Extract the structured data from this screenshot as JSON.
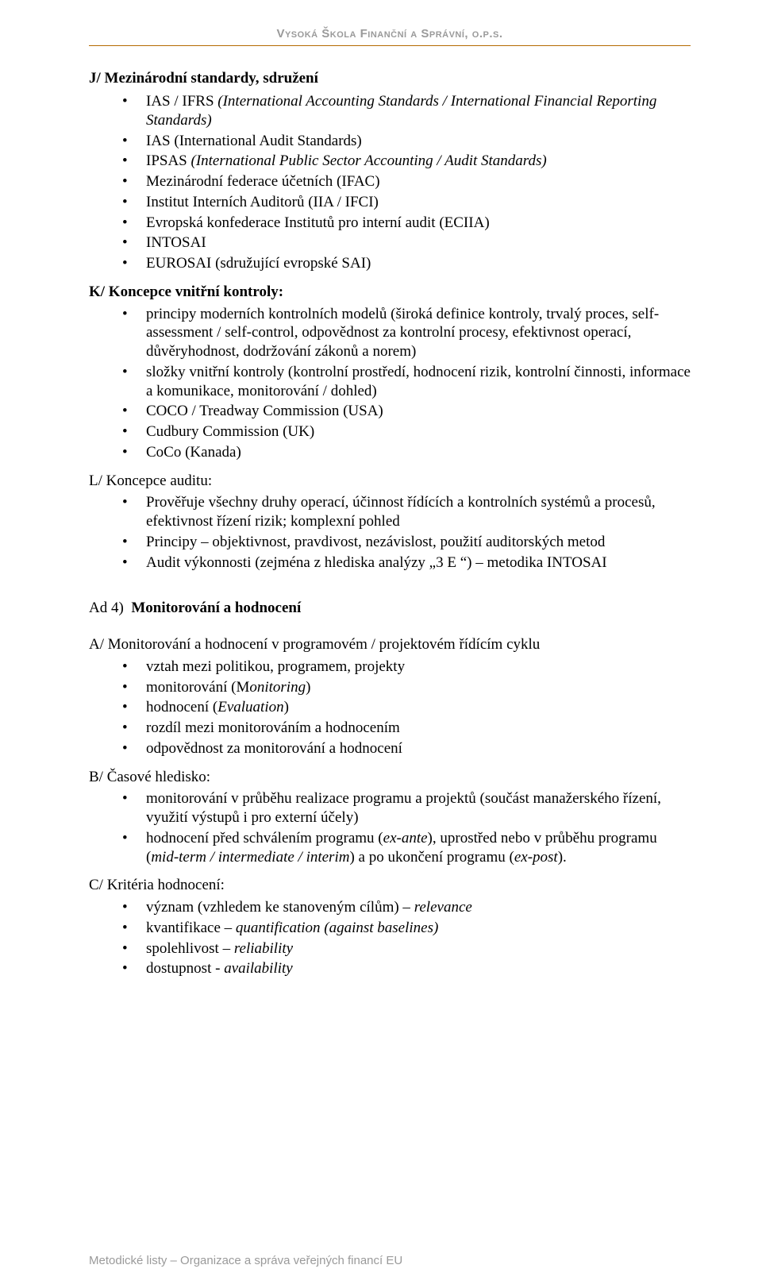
{
  "header": "Vysoká Škola Finanční a Správní, o.p.s.",
  "secJ": {
    "label": "J/  Mezinárodní standardy, sdružení",
    "items": [
      "IAS / IFRS (International Accounting Standards / International Financial Reporting Standards)",
      "IAS (International Audit Standards)",
      "IPSAS (International Public Sector Accounting / Audit Standards)",
      "Mezinárodní federace účetních (IFAC)",
      "Institut Interních Auditorů (IIA / IFCI)",
      "Evropská konfederace Institutů pro interní audit (ECIIA)",
      "INTOSAI",
      "EUROSAI (sdružující evropské SAI)"
    ]
  },
  "secK": {
    "label": "K/ Koncepce vnitřní kontroly:",
    "items": [
      "principy moderních kontrolních modelů (široká definice kontroly, trvalý proces, self-assessment / self-control, odpovědnost za kontrolní procesy, efektivnost operací, důvěryhodnost, dodržování zákonů a norem)",
      "složky vnitřní kontroly (kontrolní prostředí, hodnocení rizik, kontrolní činnosti, informace a komunikace, monitorování / dohled)",
      "COCO / Treadway Commission (USA)",
      "Cudbury Commission (UK)",
      "CoCo (Kanada)"
    ]
  },
  "secL": {
    "label": "L/ Koncepce auditu:",
    "items": [
      "Prověřuje všechny druhy operací, účinnost řídících a kontrolních systémů a procesů, efektivnost řízení rizik; komplexní pohled",
      "Principy – objektivnost, pravdivost, nezávislost, použití auditorských metod",
      "Audit výkonnosti (zejména z hlediska analýzy „3 E “) – metodika INTOSAI"
    ]
  },
  "ad4": {
    "label": "Ad 4)  Monitorování a hodnocení"
  },
  "secA": {
    "label": "A/  Monitorování a hodnocení v programovém / projektovém řídícím cyklu",
    "items": [
      {
        "text": "vztah mezi politikou, programem, projekty"
      },
      {
        "text_pre": "monitorování (M",
        "italic": "onitoring",
        "text_post": ")"
      },
      {
        "text_pre": "hodnocení (",
        "italic": "Evaluation",
        "text_post": ")"
      },
      {
        "text": "rozdíl mezi monitorováním a hodnocením"
      },
      {
        "text": "odpovědnost za monitorování a hodnocení"
      }
    ]
  },
  "secB": {
    "label": "B/  Časové hledisko:",
    "items": [
      {
        "text": "monitorování v průběhu realizace programu a projektů (součást manažerského řízení, využití výstupů i pro externí účely)"
      },
      {
        "html_parts": [
          {
            "t": "hodnocení před schválením programu ("
          },
          {
            "t": "ex-ante",
            "i": true
          },
          {
            "t": "), uprostřed nebo v průběhu programu ("
          },
          {
            "t": "mid-term / intermediate / interim",
            "i": true
          },
          {
            "t": ")  a  po ukončení programu ("
          },
          {
            "t": "ex-post",
            "i": true
          },
          {
            "t": ")."
          }
        ]
      }
    ]
  },
  "secC": {
    "label": "C/  Kritéria hodnocení:",
    "items": [
      {
        "html_parts": [
          {
            "t": "význam (vzhledem ke stanoveným cílům) – "
          },
          {
            "t": "relevance",
            "i": true
          }
        ]
      },
      {
        "html_parts": [
          {
            "t": "kvantifikace – "
          },
          {
            "t": "quantification (against baselines)",
            "i": true
          }
        ]
      },
      {
        "html_parts": [
          {
            "t": "spolehlivost – "
          },
          {
            "t": "reliability",
            "i": true
          }
        ]
      },
      {
        "html_parts": [
          {
            "t": "dostupnost - "
          },
          {
            "t": "availability",
            "i": true
          }
        ]
      }
    ]
  },
  "footer": "Metodické listy – Organizace a správa veřejných financí EU"
}
